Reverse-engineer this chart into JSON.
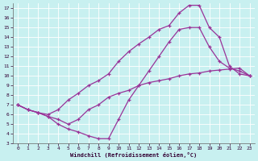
{
  "xlabel": "Windchill (Refroidissement éolien,°C)",
  "bg_color": "#c8f0f0",
  "line_color": "#993399",
  "xlim": [
    -0.5,
    23.5
  ],
  "ylim": [
    3,
    17.5
  ],
  "xticks": [
    0,
    1,
    2,
    3,
    4,
    5,
    6,
    7,
    8,
    9,
    10,
    11,
    12,
    13,
    14,
    15,
    16,
    17,
    18,
    19,
    20,
    21,
    22,
    23
  ],
  "yticks": [
    3,
    4,
    5,
    6,
    7,
    8,
    9,
    10,
    11,
    12,
    13,
    14,
    15,
    16,
    17
  ],
  "line1_x": [
    0,
    1,
    2,
    3,
    4,
    5,
    6,
    7,
    8,
    9,
    10,
    11,
    12,
    13,
    14,
    15,
    16,
    17,
    18,
    19,
    20,
    21,
    22,
    23
  ],
  "line1_y": [
    7.0,
    6.5,
    6.2,
    6.0,
    6.5,
    7.5,
    8.2,
    9.0,
    9.5,
    10.2,
    11.5,
    12.5,
    13.3,
    14.0,
    14.8,
    15.2,
    16.5,
    17.3,
    17.3,
    15.0,
    14.0,
    11.0,
    10.2,
    10.0
  ],
  "line2_x": [
    0,
    1,
    2,
    3,
    4,
    5,
    6,
    7,
    8,
    9,
    10,
    11,
    12,
    13,
    14,
    15,
    16,
    17,
    18,
    19,
    20,
    21,
    22,
    23
  ],
  "line2_y": [
    7.0,
    6.5,
    6.2,
    5.8,
    5.5,
    5.0,
    5.5,
    6.5,
    7.0,
    7.8,
    8.2,
    8.5,
    9.0,
    9.3,
    9.5,
    9.7,
    10.0,
    10.2,
    10.3,
    10.5,
    10.6,
    10.7,
    10.8,
    10.0
  ],
  "line3_x": [
    0,
    1,
    2,
    3,
    4,
    5,
    6,
    7,
    8,
    9,
    10,
    11,
    12,
    13,
    14,
    15,
    16,
    17,
    18,
    19,
    20,
    21,
    22,
    23
  ],
  "line3_y": [
    7.0,
    6.5,
    6.2,
    5.8,
    5.0,
    4.5,
    4.2,
    3.8,
    3.5,
    3.5,
    5.5,
    7.5,
    9.0,
    10.5,
    12.0,
    13.5,
    14.8,
    15.0,
    15.0,
    13.0,
    11.5,
    10.8,
    10.5,
    10.0
  ]
}
